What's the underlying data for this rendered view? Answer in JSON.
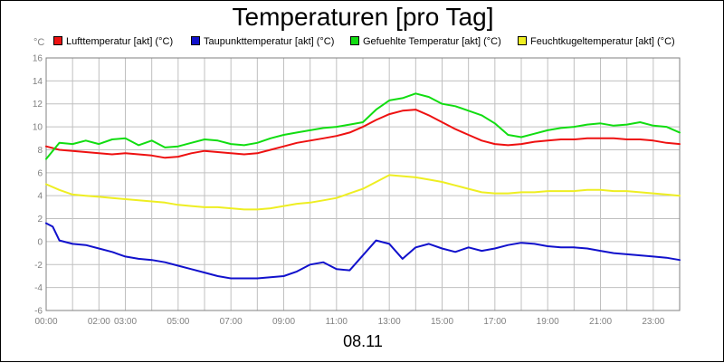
{
  "chart_data": {
    "type": "line",
    "title": "Temperaturen [pro Tag]",
    "unit_label": "°C",
    "xlabel": "08.11",
    "ylabel": "",
    "x_range": [
      0,
      24
    ],
    "ylim": [
      -6,
      16
    ],
    "y_ticks": [
      "-6",
      "-4",
      "-2",
      "0",
      "2",
      "4",
      "6",
      "8",
      "10",
      "12",
      "14",
      "16"
    ],
    "x_ticks": [
      {
        "label": "00:00",
        "hour": 0
      },
      {
        "label": "02:00",
        "hour": 2
      },
      {
        "label": "03:00",
        "hour": 3
      },
      {
        "label": "05:00",
        "hour": 5
      },
      {
        "label": "07:00",
        "hour": 7
      },
      {
        "label": "09:00",
        "hour": 9
      },
      {
        "label": "11:00",
        "hour": 11
      },
      {
        "label": "13:00",
        "hour": 13
      },
      {
        "label": "15:00",
        "hour": 15
      },
      {
        "label": "17:00",
        "hour": 17
      },
      {
        "label": "19:00",
        "hour": 19
      },
      {
        "label": "21:00",
        "hour": 21
      },
      {
        "label": "23:00",
        "hour": 23
      }
    ],
    "grid": true,
    "series": [
      {
        "name": "Lufttemperatur [akt] (°C)",
        "color": "#ee1111",
        "x": [
          0,
          0.5,
          1,
          1.5,
          2,
          2.5,
          3,
          3.5,
          4,
          4.5,
          5,
          5.5,
          6,
          6.5,
          7,
          7.5,
          8,
          8.5,
          9,
          9.5,
          10,
          10.5,
          11,
          11.5,
          12,
          12.5,
          13,
          13.5,
          14,
          14.5,
          15,
          15.5,
          16,
          16.5,
          17,
          17.5,
          18,
          18.5,
          19,
          19.5,
          20,
          20.5,
          21,
          21.5,
          22,
          22.5,
          23,
          23.5,
          24
        ],
        "values": [
          8.3,
          8.0,
          7.9,
          7.8,
          7.7,
          7.6,
          7.7,
          7.6,
          7.5,
          7.3,
          7.4,
          7.7,
          7.9,
          7.8,
          7.7,
          7.6,
          7.7,
          8.0,
          8.3,
          8.6,
          8.8,
          9.0,
          9.2,
          9.5,
          10.0,
          10.6,
          11.1,
          11.4,
          11.5,
          11.0,
          10.4,
          9.8,
          9.3,
          8.8,
          8.5,
          8.4,
          8.5,
          8.7,
          8.8,
          8.9,
          8.9,
          9.0,
          9.0,
          9.0,
          8.9,
          8.9,
          8.8,
          8.6,
          8.5
        ]
      },
      {
        "name": "Taupunkttemperatur [akt] (°C)",
        "color": "#1111cc",
        "x": [
          0,
          0.25,
          0.5,
          1,
          1.5,
          2,
          2.5,
          3,
          3.5,
          4,
          4.5,
          5,
          5.5,
          6,
          6.5,
          7,
          7.5,
          8,
          8.5,
          9,
          9.5,
          10,
          10.5,
          11,
          11.5,
          12,
          12.5,
          13,
          13.5,
          14,
          14.5,
          15,
          15.5,
          16,
          16.5,
          17,
          17.5,
          18,
          18.5,
          19,
          19.5,
          20,
          20.5,
          21,
          21.5,
          22,
          22.5,
          23,
          23.5,
          24
        ],
        "values": [
          1.6,
          1.3,
          0.1,
          -0.2,
          -0.3,
          -0.6,
          -0.9,
          -1.3,
          -1.5,
          -1.6,
          -1.8,
          -2.1,
          -2.4,
          -2.7,
          -3.0,
          -3.2,
          -3.2,
          -3.2,
          -3.1,
          -3.0,
          -2.6,
          -2.0,
          -1.8,
          -2.4,
          -2.5,
          -1.2,
          0.1,
          -0.2,
          -1.5,
          -0.5,
          -0.2,
          -0.6,
          -0.9,
          -0.5,
          -0.8,
          -0.6,
          -0.3,
          -0.1,
          -0.2,
          -0.4,
          -0.5,
          -0.5,
          -0.6,
          -0.8,
          -1.0,
          -1.1,
          -1.2,
          -1.3,
          -1.4,
          -1.6
        ]
      },
      {
        "name": "Gefuehlte Temperatur [akt] (°C)",
        "color": "#11dd11",
        "x": [
          0,
          0.5,
          1,
          1.5,
          2,
          2.5,
          3,
          3.5,
          4,
          4.5,
          5,
          5.5,
          6,
          6.5,
          7,
          7.5,
          8,
          8.5,
          9,
          9.5,
          10,
          10.5,
          11,
          11.5,
          12,
          12.5,
          13,
          13.5,
          14,
          14.5,
          15,
          15.5,
          16,
          16.5,
          17,
          17.5,
          18,
          18.5,
          19,
          19.5,
          20,
          20.5,
          21,
          21.5,
          22,
          22.5,
          23,
          23.5,
          24
        ],
        "values": [
          7.2,
          8.6,
          8.5,
          8.8,
          8.5,
          8.9,
          9.0,
          8.4,
          8.8,
          8.2,
          8.3,
          8.6,
          8.9,
          8.8,
          8.5,
          8.4,
          8.6,
          9.0,
          9.3,
          9.5,
          9.7,
          9.9,
          10.0,
          10.2,
          10.4,
          11.5,
          12.3,
          12.5,
          12.9,
          12.6,
          12.0,
          11.8,
          11.4,
          11.0,
          10.3,
          9.3,
          9.1,
          9.4,
          9.7,
          9.9,
          10.0,
          10.2,
          10.3,
          10.1,
          10.2,
          10.4,
          10.1,
          10.0,
          9.5
        ]
      },
      {
        "name": "Feuchtkugeltemperatur [akt] (°C)",
        "color": "#eeee22",
        "x": [
          0,
          0.5,
          1,
          1.5,
          2,
          2.5,
          3,
          3.5,
          4,
          4.5,
          5,
          5.5,
          6,
          6.5,
          7,
          7.5,
          8,
          8.5,
          9,
          9.5,
          10,
          10.5,
          11,
          11.5,
          12,
          12.5,
          13,
          13.5,
          14,
          14.5,
          15,
          15.5,
          16,
          16.5,
          17,
          17.5,
          18,
          18.5,
          19,
          19.5,
          20,
          20.5,
          21,
          21.5,
          22,
          22.5,
          23,
          23.5,
          24
        ],
        "values": [
          5.0,
          4.5,
          4.1,
          4.0,
          3.9,
          3.8,
          3.7,
          3.6,
          3.5,
          3.4,
          3.2,
          3.1,
          3.0,
          3.0,
          2.9,
          2.8,
          2.8,
          2.9,
          3.1,
          3.3,
          3.4,
          3.6,
          3.8,
          4.2,
          4.6,
          5.2,
          5.8,
          5.7,
          5.6,
          5.4,
          5.2,
          4.9,
          4.6,
          4.3,
          4.2,
          4.2,
          4.3,
          4.3,
          4.4,
          4.4,
          4.4,
          4.5,
          4.5,
          4.4,
          4.4,
          4.3,
          4.2,
          4.1,
          4.0
        ]
      }
    ]
  }
}
